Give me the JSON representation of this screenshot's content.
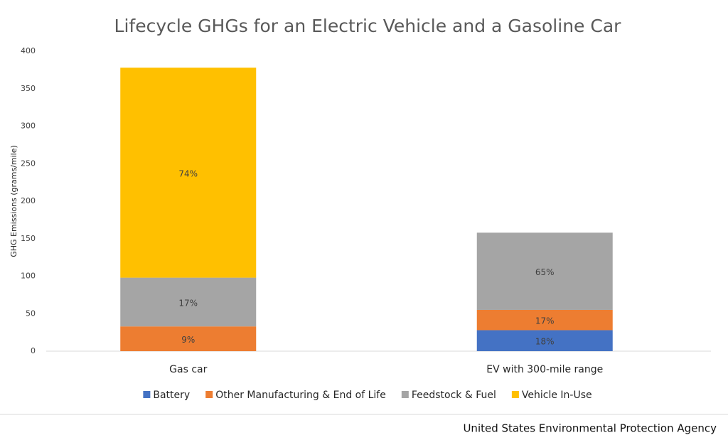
{
  "chart_data": {
    "type": "stacked_bar",
    "title": "Lifecycle GHGs for an Electric Vehicle and a Gasoline Car",
    "y_label": "GHG Emissions (grams/mile)",
    "categories": [
      "Gas car",
      "EV with 300-mile range"
    ],
    "series": [
      {
        "name": "Battery",
        "color": "#4472c4",
        "values": [
          null,
          28
        ],
        "value_labels": [
          null,
          "18%"
        ]
      },
      {
        "name": "Other Manufacturing & End of Life",
        "color": "#ed7d31",
        "values": [
          33,
          27
        ],
        "value_labels": [
          "9%",
          "17%"
        ]
      },
      {
        "name": "Feedstock & Fuel",
        "color": "#a5a5a5",
        "values": [
          65,
          103
        ],
        "value_labels": [
          "17%",
          "65%"
        ]
      },
      {
        "name": "Vehicle In-Use",
        "color": "#ffc000",
        "values": [
          280,
          null
        ],
        "value_labels": [
          "74%",
          null
        ]
      }
    ],
    "ylim": [
      0,
      400
    ],
    "yticks": [
      0,
      50,
      100,
      150,
      200,
      250,
      300,
      350,
      400
    ],
    "grid": false,
    "legend": "bottom",
    "source": "United States Environmental Protection Agency"
  }
}
